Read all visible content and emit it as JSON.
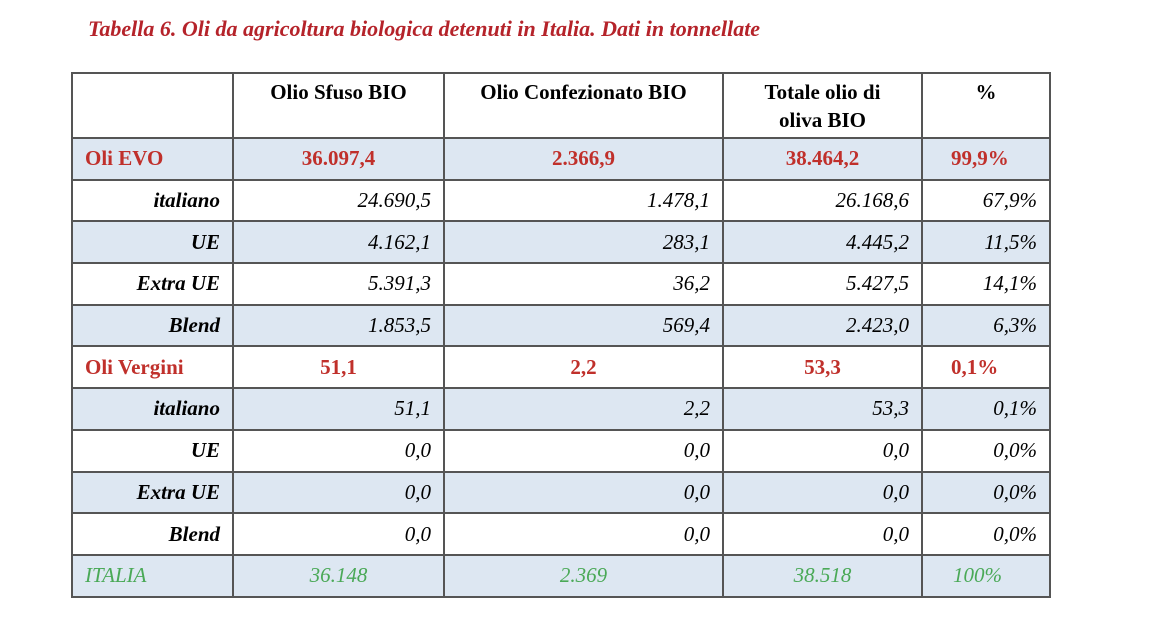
{
  "title": "Tabella 6. Oli da agricoltura biologica detenuti in Italia. Dati in tonnellate",
  "headers": [
    "",
    "Olio Sfuso BIO",
    "Olio Confezionato BIO",
    "Totale olio di oliva BIO",
    "%"
  ],
  "rows": [
    {
      "type": "group",
      "shade": true,
      "cells": [
        "Oli EVO",
        "36.097,4",
        "2.366,9",
        "38.464,2",
        "99,9%"
      ]
    },
    {
      "type": "sub",
      "shade": false,
      "cells": [
        "italiano",
        "24.690,5",
        "1.478,1",
        "26.168,6",
        "67,9%"
      ]
    },
    {
      "type": "sub",
      "shade": true,
      "cells": [
        "UE",
        "4.162,1",
        "283,1",
        "4.445,2",
        "11,5%"
      ]
    },
    {
      "type": "sub",
      "shade": false,
      "cells": [
        "Extra UE",
        "5.391,3",
        "36,2",
        "5.427,5",
        "14,1%"
      ]
    },
    {
      "type": "sub",
      "shade": true,
      "cells": [
        "Blend",
        "1.853,5",
        "569,4",
        "2.423,0",
        "6,3%"
      ]
    },
    {
      "type": "group",
      "shade": false,
      "cells": [
        "Oli Vergini",
        "51,1",
        "2,2",
        "53,3",
        "0,1%"
      ]
    },
    {
      "type": "sub",
      "shade": true,
      "cells": [
        "italiano",
        "51,1",
        "2,2",
        "53,3",
        "0,1%"
      ]
    },
    {
      "type": "sub",
      "shade": false,
      "cells": [
        "UE",
        "0,0",
        "0,0",
        "0,0",
        "0,0%"
      ]
    },
    {
      "type": "sub",
      "shade": true,
      "cells": [
        "Extra UE",
        "0,0",
        "0,0",
        "0,0",
        "0,0%"
      ]
    },
    {
      "type": "sub",
      "shade": false,
      "cells": [
        "Blend",
        "0,0",
        "0,0",
        "0,0",
        "0,0%"
      ]
    },
    {
      "type": "total",
      "shade": true,
      "cells": [
        "ITALIA",
        "36.148",
        "2.369",
        "38.518",
        "100%"
      ]
    }
  ],
  "colors": {
    "title": "#b5232a",
    "group": "#c0302b",
    "total": "#4aa957",
    "shade": "#dde7f2"
  }
}
